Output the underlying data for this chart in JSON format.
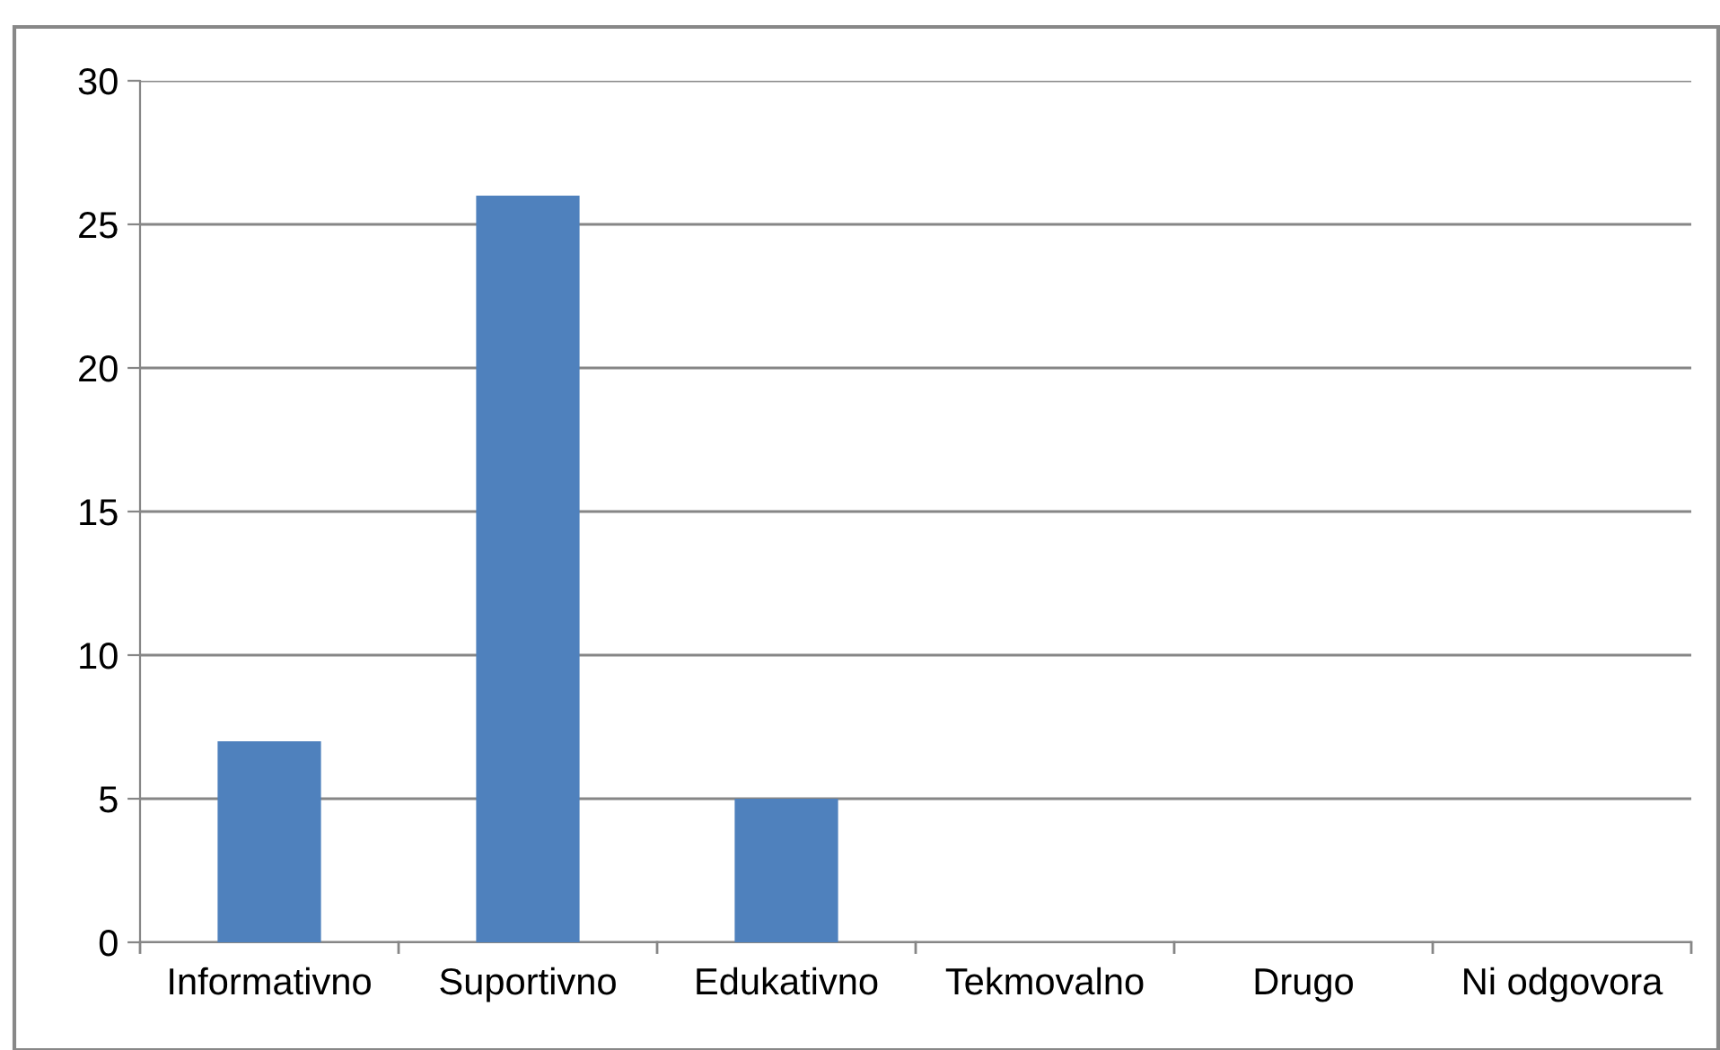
{
  "chart_data": {
    "type": "bar",
    "categories": [
      "Informativno",
      "Suportivno",
      "Edukativno",
      "Tekmovalno",
      "Drugo",
      "Ni odgovora"
    ],
    "values": [
      7,
      26,
      5,
      0,
      0,
      0
    ],
    "color": "#4f81bd",
    "ylim": [
      0,
      30
    ],
    "yticks": [
      0,
      5,
      10,
      15,
      20,
      25,
      30
    ],
    "grid": "y",
    "legend": false
  }
}
